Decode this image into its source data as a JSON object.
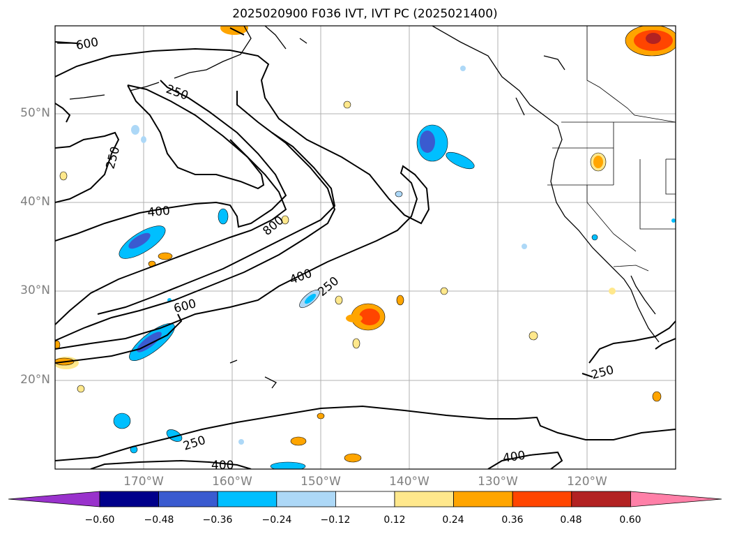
{
  "title": "2025020900 F036 IVT, IVT PC (2025021400)",
  "lat_labels": [
    "50°N",
    "40°N",
    "30°N",
    "20°N"
  ],
  "lon_labels": [
    "170°W",
    "160°W",
    "150°W",
    "140°W",
    "130°W",
    "120°W"
  ],
  "contour_labels": [
    "600",
    "250",
    "250",
    "400",
    "800",
    "400",
    "250",
    "600",
    "250",
    "250",
    "400",
    "400"
  ],
  "colorbar": {
    "ticks": [
      "−0.60",
      "−0.48",
      "−0.36",
      "−0.24",
      "−0.12",
      "0.12",
      "0.24",
      "0.36",
      "0.48",
      "0.60"
    ],
    "colors": [
      "#9932cc",
      "#00008b",
      "#3a5bd0",
      "#00bfff",
      "#add8f7",
      "#ffffff",
      "#ffe88c",
      "#ffa500",
      "#ff4500",
      "#b22222",
      "#ff80a8"
    ]
  },
  "chart_data": {
    "type": "map",
    "title": "2025020900 F036 IVT, IVT PC (2025021400)",
    "lat_range": [
      10,
      60
    ],
    "lon_range": [
      -180,
      -110
    ],
    "gridlines": true,
    "contour_levels": [
      250,
      400,
      600,
      800
    ],
    "colorbar_levels": [
      -0.6,
      -0.48,
      -0.36,
      -0.24,
      -0.12,
      0.12,
      0.24,
      0.36,
      0.48,
      0.6
    ],
    "colorbar_extend": "both"
  }
}
